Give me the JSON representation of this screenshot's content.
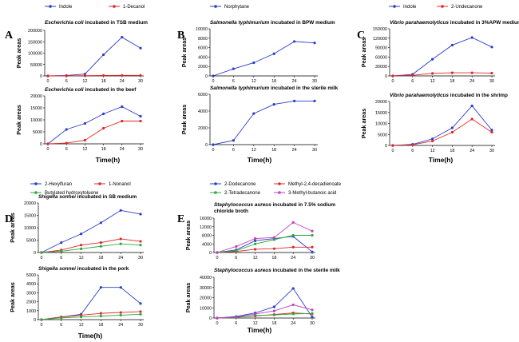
{
  "chart_data": [
    {
      "panel": "A",
      "legend": [
        "Indole",
        "1-Decanol"
      ],
      "xlabel": "Time(h)",
      "subplots": [
        {
          "type": "line",
          "title": {
            "organism": "Escherichia coli",
            "rest": " incubated in TSB medium"
          },
          "ylabel": "Peak areas",
          "x": [
            0,
            6,
            12,
            18,
            24,
            30
          ],
          "yticks": [
            0,
            50000,
            100000,
            150000,
            200000
          ],
          "ylim": [
            0,
            200000
          ],
          "series": [
            {
              "name": "Indole",
              "color": "#2b3dc7",
              "values": [
                0,
                2000,
                8000,
                93000,
                170000,
                122000
              ]
            },
            {
              "name": "1-Decanol",
              "color": "#e02828",
              "values": [
                0,
                500,
                1000,
                2000,
                2500,
                2500
              ]
            }
          ]
        },
        {
          "type": "line",
          "title": {
            "organism": "Escherichia coli",
            "rest": " incubated in the beef"
          },
          "ylabel": "Peak areas",
          "x": [
            0,
            6,
            12,
            18,
            24,
            30
          ],
          "yticks": [
            0,
            5000,
            10000,
            15000,
            20000
          ],
          "ylim": [
            0,
            20000
          ],
          "series": [
            {
              "name": "Indole",
              "color": "#2b3dc7",
              "values": [
                0,
                6000,
                8500,
                12500,
                15500,
                11500
              ]
            },
            {
              "name": "1-Decanol",
              "color": "#e02828",
              "values": [
                0,
                300,
                1500,
                6500,
                9500,
                9500
              ]
            }
          ]
        }
      ]
    },
    {
      "panel": "B",
      "legend": [
        "Norphytane"
      ],
      "xlabel": "Time(h)",
      "subplots": [
        {
          "type": "line",
          "title": {
            "organism": "Salmonella typhimurium",
            "rest": " incubated in BPW medium"
          },
          "ylabel": "Peak areas",
          "x": [
            0,
            6,
            12,
            18,
            24,
            30
          ],
          "yticks": [
            0,
            2000,
            4000,
            6000,
            8000,
            10000
          ],
          "ylim": [
            0,
            10000
          ],
          "series": [
            {
              "name": "Norphytane",
              "color": "#2b3dc7",
              "values": [
                0,
                1500,
                2800,
                4700,
                7300,
                7000
              ]
            }
          ]
        },
        {
          "type": "line",
          "title": {
            "organism": "Salmonella typhimurium",
            "rest": " incubated in the sterile milk"
          },
          "ylabel": "Peak areas",
          "x": [
            0,
            6,
            12,
            18,
            24,
            30
          ],
          "yticks": [
            0,
            2000,
            4000,
            6000
          ],
          "ylim": [
            0,
            6000
          ],
          "series": [
            {
              "name": "Norphytane",
              "color": "#2b3dc7",
              "values": [
                0,
                500,
                3700,
                4800,
                5200,
                5200
              ]
            }
          ]
        }
      ]
    },
    {
      "panel": "C",
      "legend": [
        "Indole",
        "2-Undecanone"
      ],
      "xlabel": "Time(h)",
      "subplots": [
        {
          "type": "line",
          "title": {
            "organism": "Vibrio parahaemolyticus",
            "rest": " incubated in 3%APW medium"
          },
          "ylabel": "Peak areas",
          "x": [
            0,
            6,
            12,
            18,
            24,
            30
          ],
          "yticks": [
            0,
            30000,
            60000,
            90000,
            120000,
            150000
          ],
          "ylim": [
            0,
            150000
          ],
          "series": [
            {
              "name": "Indole",
              "color": "#2b3dc7",
              "values": [
                0,
                5000,
                53000,
                98000,
                122000,
                92000
              ]
            },
            {
              "name": "2-Undecanone",
              "color": "#e02828",
              "values": [
                0,
                2000,
                8000,
                10000,
                10000,
                9000
              ]
            }
          ]
        },
        {
          "type": "line",
          "title": {
            "organism": "Vibrio parahaemolyticus",
            "rest": " incubated in the shrimp"
          },
          "ylabel": "Peak areas",
          "x": [
            0,
            6,
            12,
            18,
            24,
            30
          ],
          "yticks": [
            0,
            5000,
            10000,
            15000,
            20000
          ],
          "ylim": [
            0,
            20000
          ],
          "series": [
            {
              "name": "Indole",
              "color": "#2b3dc7",
              "values": [
                0,
                500,
                3000,
                8000,
                18000,
                7000
              ]
            },
            {
              "name": "2-Undecanone",
              "color": "#e02828",
              "values": [
                0,
                300,
                2000,
                6000,
                12000,
                6000
              ]
            }
          ]
        }
      ]
    },
    {
      "panel": "D",
      "legend": [
        "2-Hexylfuran",
        "1-Nonanol",
        "Butylated hydroxytoluene"
      ],
      "xlabel": "Time(h)",
      "subplots": [
        {
          "type": "line",
          "title": {
            "organism": "Shigella sonnei",
            "rest": " incubated in SB medium"
          },
          "ylabel": "Peak areas",
          "x": [
            0,
            6,
            12,
            18,
            24,
            30
          ],
          "yticks": [
            0,
            5000,
            10000,
            15000,
            20000
          ],
          "ylim": [
            0,
            20000
          ],
          "series": [
            {
              "name": "2-Hexylfuran",
              "color": "#2b3dc7",
              "values": [
                0,
                4000,
                7500,
                12000,
                17000,
                15500
              ]
            },
            {
              "name": "1-Nonanol",
              "color": "#e02828",
              "values": [
                0,
                1000,
                3000,
                4000,
                5500,
                4500
              ]
            },
            {
              "name": "Butylated hydroxytoluene",
              "color": "#2ea83a",
              "values": [
                0,
                500,
                1500,
                2500,
                3500,
                3000
              ]
            }
          ]
        },
        {
          "type": "line",
          "title": {
            "organism": "Shigella sonnei",
            "rest": " incubated in the pork"
          },
          "ylabel": "Peak areas",
          "x": [
            0,
            6,
            12,
            18,
            24,
            30
          ],
          "yticks": [
            0,
            1000,
            2000,
            3000,
            4000,
            5000
          ],
          "ylim": [
            0,
            5000
          ],
          "series": [
            {
              "name": "2-Hexylfuran",
              "color": "#2b3dc7",
              "values": [
                0,
                300,
                600,
                3600,
                3600,
                1800
              ]
            },
            {
              "name": "1-Nonanol",
              "color": "#e02828",
              "values": [
                0,
                300,
                500,
                700,
                800,
                900
              ]
            },
            {
              "name": "Butylated hydroxytoluene",
              "color": "#2ea83a",
              "values": [
                0,
                200,
                300,
                400,
                500,
                600
              ]
            }
          ]
        }
      ]
    },
    {
      "panel": "E",
      "legend": [
        "2-Dodecanone",
        "Methyl-2,4-decadienoate",
        "2-Tetradecanone",
        "3-Methyl-butanoic acid"
      ],
      "xlabel": "Time(h)",
      "subplots": [
        {
          "type": "line",
          "title": {
            "organism": "Staphylococcus aureus",
            "rest": " incubated in 7.5% sodium",
            "line2": "chloride broth"
          },
          "ylabel": "Peak areas",
          "x": [
            0,
            6,
            12,
            18,
            24,
            30
          ],
          "yticks": [
            0,
            4000,
            8000,
            12000,
            16000
          ],
          "ylim": [
            0,
            16000
          ],
          "series": [
            {
              "name": "2-Dodecanone",
              "color": "#2b3dc7",
              "values": [
                0,
                1200,
                5500,
                6500,
                7500,
                300
              ]
            },
            {
              "name": "Methyl-2,4-decadienoate",
              "color": "#e02828",
              "values": [
                0,
                500,
                1500,
                1800,
                2500,
                2500
              ]
            },
            {
              "name": "2-Tetradecanone",
              "color": "#2ea83a",
              "values": [
                0,
                800,
                4000,
                6000,
                8000,
                8000
              ]
            },
            {
              "name": "3-Methyl-butanoic acid",
              "color": "#c040c0",
              "values": [
                0,
                2800,
                6500,
                7000,
                14000,
                10000
              ]
            }
          ]
        },
        {
          "type": "line",
          "title": {
            "organism": "Staphylococcus aureus",
            "rest": " incubated in the sterile milk"
          },
          "ylabel": "Peak areas",
          "x": [
            0,
            6,
            12,
            18,
            24,
            30
          ],
          "yticks": [
            0,
            10000,
            20000,
            30000,
            40000
          ],
          "ylim": [
            0,
            40000
          ],
          "series": [
            {
              "name": "2-Dodecanone",
              "color": "#2b3dc7",
              "values": [
                0,
                1500,
                5000,
                11000,
                29000,
                1000
              ]
            },
            {
              "name": "Methyl-2,4-decadienoate",
              "color": "#e02828",
              "values": [
                0,
                800,
                2000,
                3500,
                5000,
                4000
              ]
            },
            {
              "name": "2-Tetradecanone",
              "color": "#2ea83a",
              "values": [
                0,
                500,
                2500,
                3000,
                4000,
                4500
              ]
            },
            {
              "name": "3-Methyl-butanoic acid",
              "color": "#c040c0",
              "values": [
                0,
                1000,
                4000,
                7000,
                13000,
                8000
              ]
            }
          ]
        }
      ]
    }
  ]
}
